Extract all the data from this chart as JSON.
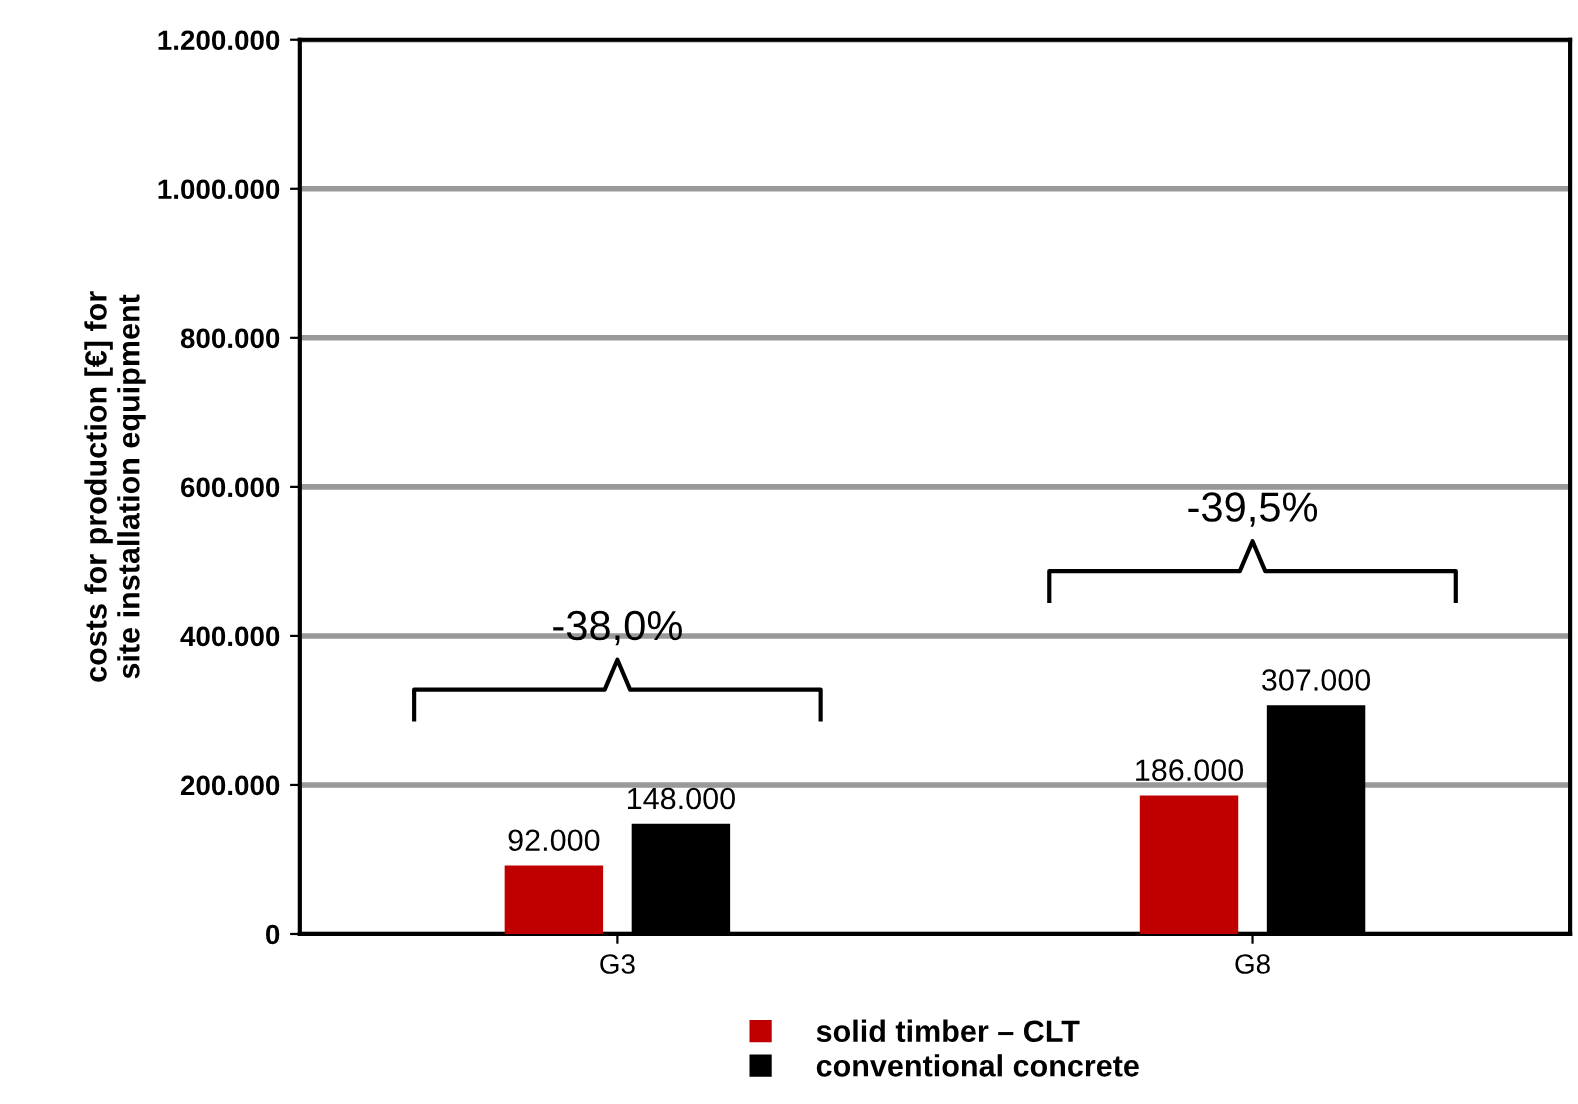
{
  "chart_data": {
    "type": "bar",
    "ylabel": "costs for production [€] for\nsite installation equipment",
    "categories": [
      "G3",
      "G8"
    ],
    "series": [
      {
        "name": "solid timber – CLT",
        "color": "#c00000",
        "values": [
          92000,
          186000
        ],
        "value_labels": [
          "92.000",
          "186.000"
        ]
      },
      {
        "name": "conventional concrete",
        "color": "#000000",
        "values": [
          148000,
          307000
        ],
        "value_labels": [
          "148.000",
          "307.000"
        ]
      }
    ],
    "ylim": [
      0,
      1200000
    ],
    "yticks": [
      {
        "value": 0,
        "label": "0"
      },
      {
        "value": 200000,
        "label": "200.000"
      },
      {
        "value": 400000,
        "label": "400.000"
      },
      {
        "value": 600000,
        "label": "600.000"
      },
      {
        "value": 800000,
        "label": "800.000"
      },
      {
        "value": 1000000,
        "label": "1.000.000"
      },
      {
        "value": 1200000,
        "label": "1.200.000"
      }
    ],
    "grid": "y",
    "legend": "bottom",
    "annotations": [
      "-38,0%",
      "-39,5%"
    ]
  }
}
